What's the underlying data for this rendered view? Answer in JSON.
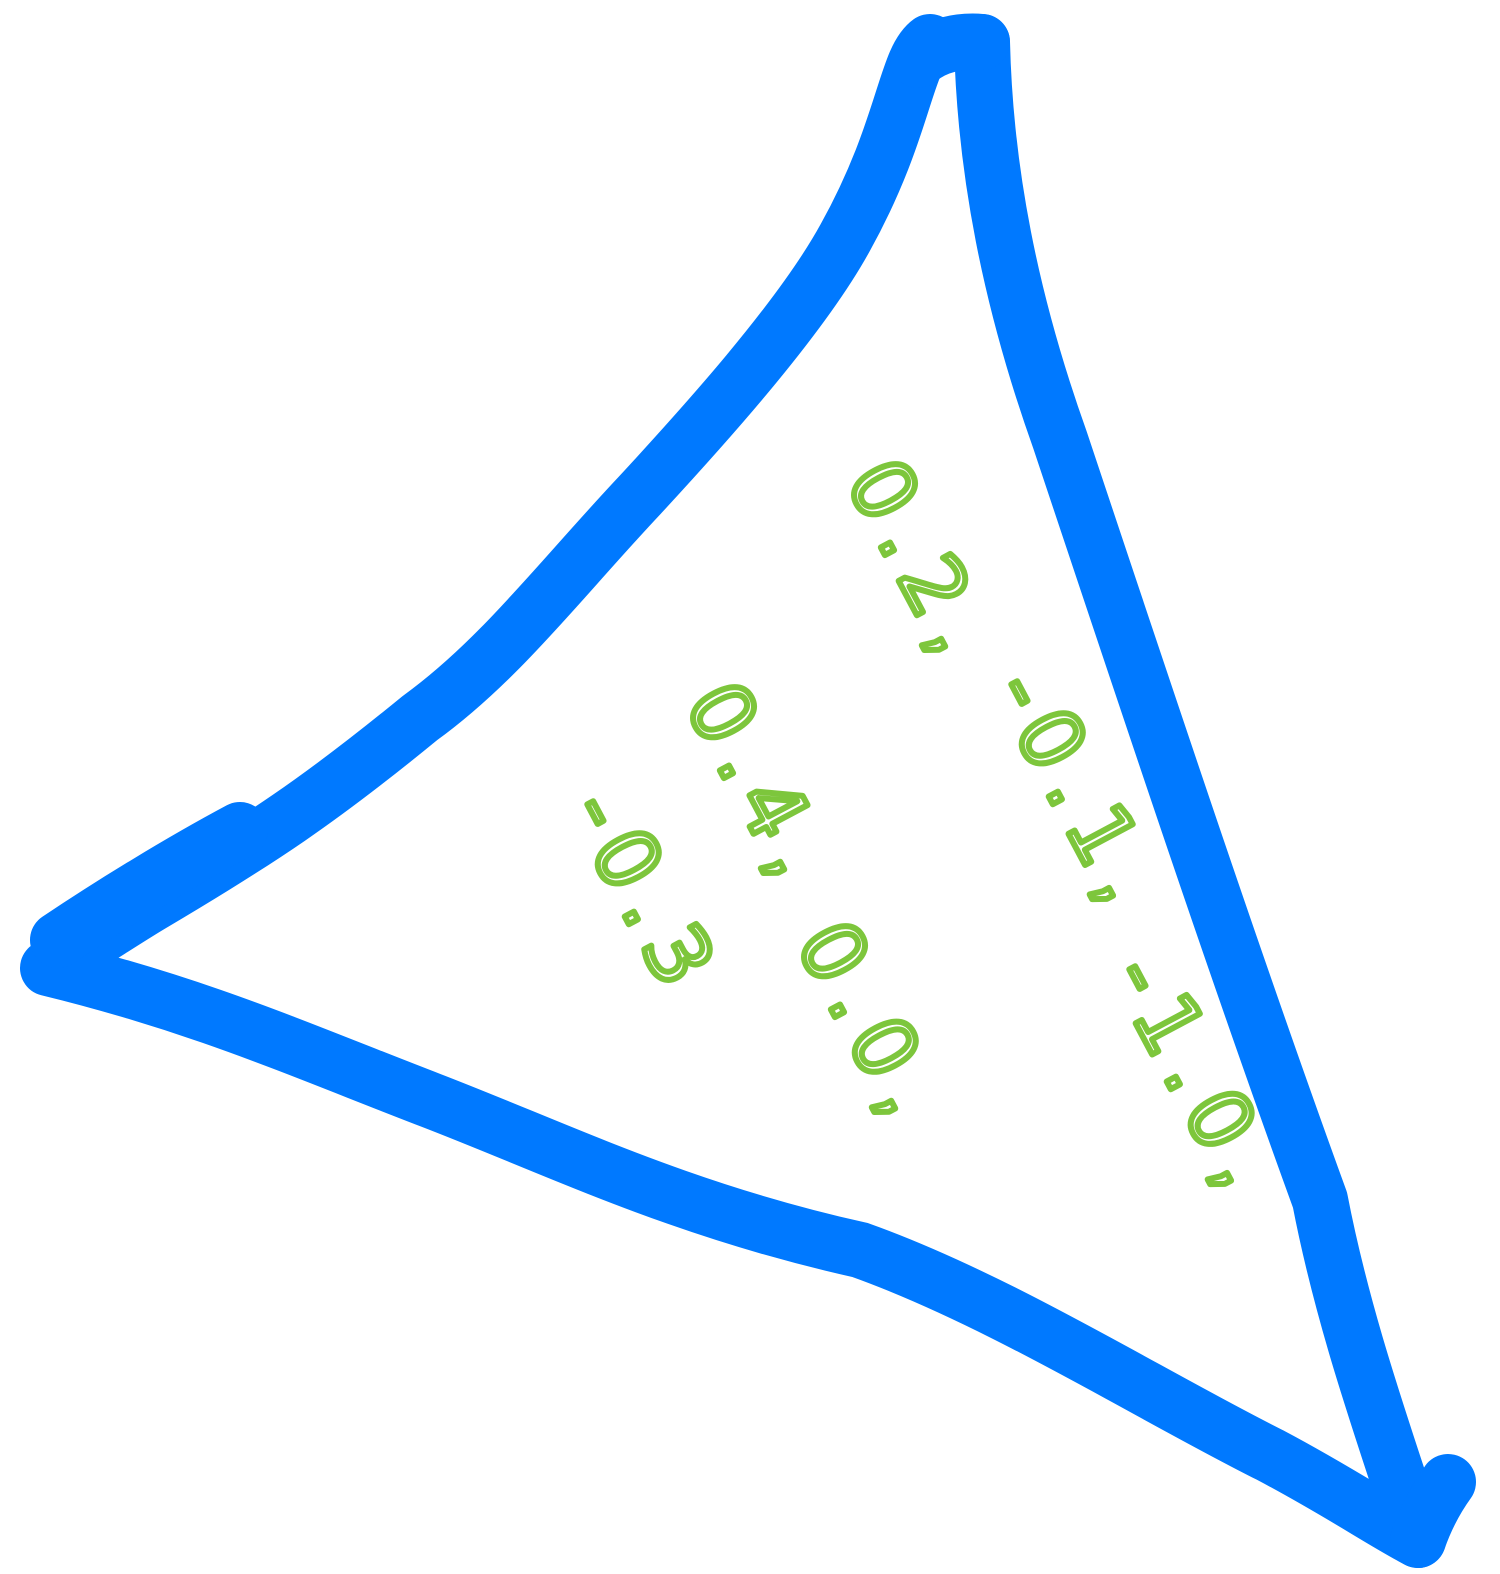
{
  "drawing": {
    "shape_color": "#0079FF",
    "text_color": "#7DC63C",
    "labels": [
      "0.2,",
      "-0.1,",
      "-1.0,",
      "0.4,",
      "0.0,",
      "-0.3"
    ]
  }
}
